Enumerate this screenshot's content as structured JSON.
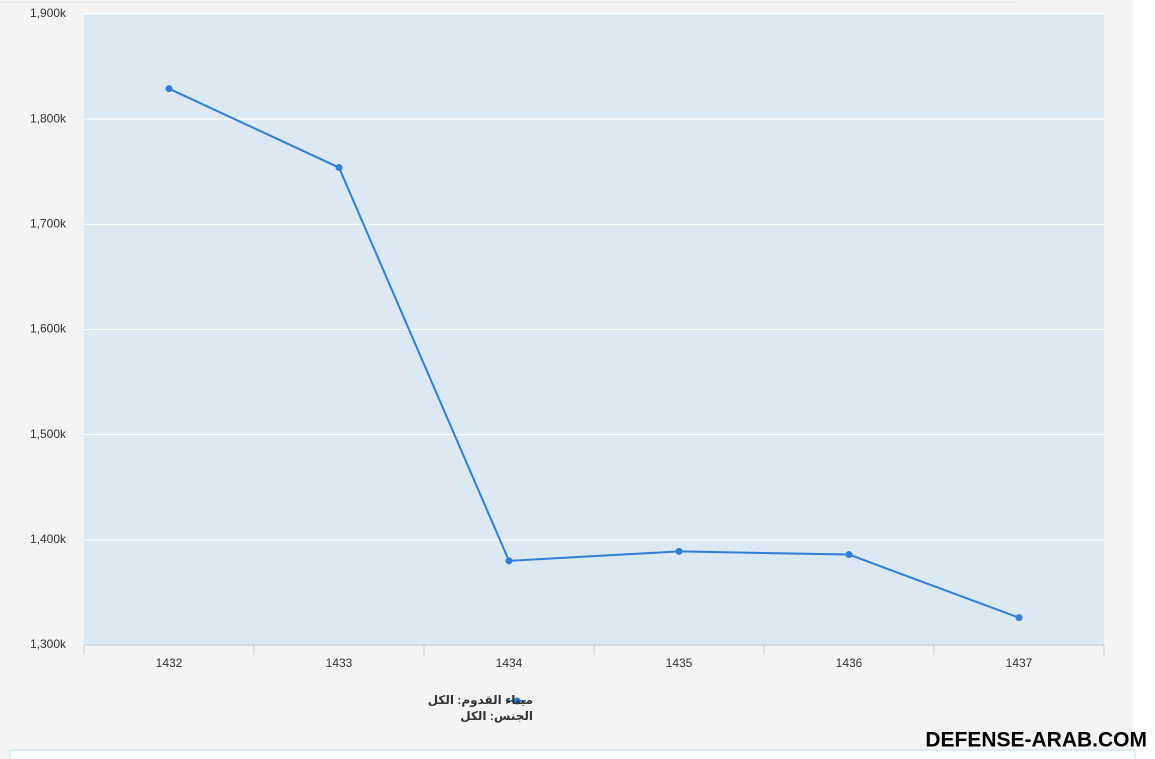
{
  "chart_data": {
    "type": "line",
    "categories": [
      "1432",
      "1433",
      "1434",
      "1435",
      "1436",
      "1437"
    ],
    "series": [
      {
        "name": "ميناء القدوم: الكل",
        "color": "#2f7ed8",
        "values": [
          1829,
          1754,
          1380,
          1389,
          1386,
          1326
        ]
      }
    ],
    "legend_note": "الجنس: الكل",
    "ylim": [
      1300,
      1900
    ],
    "yticks": [
      {
        "value": 1300,
        "label": "1,300k"
      },
      {
        "value": 1400,
        "label": "1,400k"
      },
      {
        "value": 1500,
        "label": "1,500k"
      },
      {
        "value": 1600,
        "label": "1,600k"
      },
      {
        "value": 1700,
        "label": "1,700k"
      },
      {
        "value": 1800,
        "label": "1,800k"
      },
      {
        "value": 1900,
        "label": "1,900k"
      }
    ],
    "grid": true,
    "legend": "bottom",
    "watermark": "DEFENSE-ARAB.COM"
  }
}
